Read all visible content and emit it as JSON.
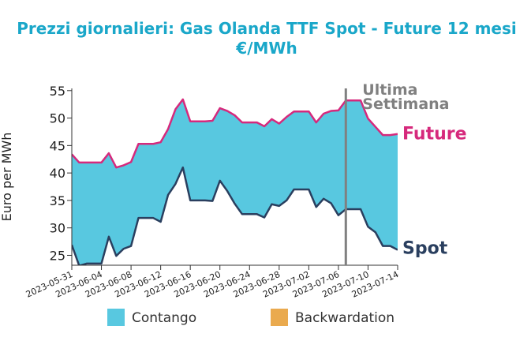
{
  "chart_data": {
    "type": "area",
    "title_line1": "Prezzi giornalieri: Gas Olanda TTF Spot - Future 12 mesi",
    "title_line2": "€/MWh",
    "xlabel": "",
    "ylabel": "Euro per MWh",
    "ylim": [
      23.2,
      55.4
    ],
    "yticks": [
      25,
      30,
      35,
      40,
      45,
      50,
      55
    ],
    "x_range": [
      "2023-05-31",
      "2023-07-14"
    ],
    "xtick_labels": [
      "2023-05-31",
      "2023-06-04",
      "2023-06-08",
      "2023-06-12",
      "2023-06-16",
      "2023-06-20",
      "2023-06-24",
      "2023-06-28",
      "2023-07-02",
      "2023-07-06",
      "2023-07-10",
      "2023-07-14"
    ],
    "x": [
      "2023-05-31",
      "2023-06-01",
      "2023-06-02",
      "2023-06-03",
      "2023-06-04",
      "2023-06-05",
      "2023-06-06",
      "2023-06-07",
      "2023-06-08",
      "2023-06-09",
      "2023-06-10",
      "2023-06-11",
      "2023-06-12",
      "2023-06-13",
      "2023-06-14",
      "2023-06-15",
      "2023-06-16",
      "2023-06-17",
      "2023-06-18",
      "2023-06-19",
      "2023-06-20",
      "2023-06-21",
      "2023-06-22",
      "2023-06-23",
      "2023-06-24",
      "2023-06-25",
      "2023-06-26",
      "2023-06-27",
      "2023-06-28",
      "2023-06-29",
      "2023-06-30",
      "2023-07-01",
      "2023-07-02",
      "2023-07-03",
      "2023-07-04",
      "2023-07-05",
      "2023-07-06",
      "2023-07-07",
      "2023-07-08",
      "2023-07-09",
      "2023-07-10",
      "2023-07-11",
      "2023-07-12",
      "2023-07-13",
      "2023-07-14"
    ],
    "series": [
      {
        "name": "Future",
        "color": "#d6297c",
        "values": [
          43.4,
          41.9,
          41.9,
          41.9,
          41.9,
          43.6,
          41.0,
          41.4,
          42.0,
          45.3,
          45.3,
          45.3,
          45.6,
          48.0,
          51.6,
          53.4,
          49.4,
          49.4,
          49.4,
          49.5,
          51.8,
          51.3,
          50.5,
          49.2,
          49.2,
          49.2,
          48.5,
          49.8,
          49.0,
          50.2,
          51.2,
          51.2,
          51.2,
          49.2,
          50.8,
          51.3,
          51.4,
          53.2,
          53.2,
          53.2,
          49.9,
          48.4,
          46.9,
          46.9,
          47.1
        ]
      },
      {
        "name": "Spot",
        "color": "#2a3f5f",
        "values": [
          26.9,
          23.1,
          23.5,
          23.5,
          23.5,
          28.4,
          24.9,
          26.2,
          26.7,
          31.8,
          31.8,
          31.8,
          31.1,
          36.0,
          38.0,
          41.0,
          35.0,
          35.0,
          35.0,
          34.9,
          38.6,
          36.7,
          34.4,
          32.5,
          32.5,
          32.5,
          31.9,
          34.3,
          34.0,
          35.0,
          37.0,
          37.0,
          37.0,
          33.8,
          35.3,
          34.5,
          32.3,
          33.4,
          33.4,
          33.4,
          30.2,
          29.2,
          26.7,
          26.7,
          26.0
        ]
      }
    ],
    "vline": {
      "date": "2023-07-07",
      "label_line1": "Ultima",
      "label_line2": "Settimana",
      "color": "#808080"
    },
    "fill_colors": {
      "contango": "#58c8e0",
      "backwardation": "#eaaa4e"
    },
    "legend": [
      {
        "label": "Contango",
        "color": "#58c8e0"
      },
      {
        "label": "Backwardation",
        "color": "#eaaa4e"
      }
    ],
    "legend_position": "bottom"
  }
}
